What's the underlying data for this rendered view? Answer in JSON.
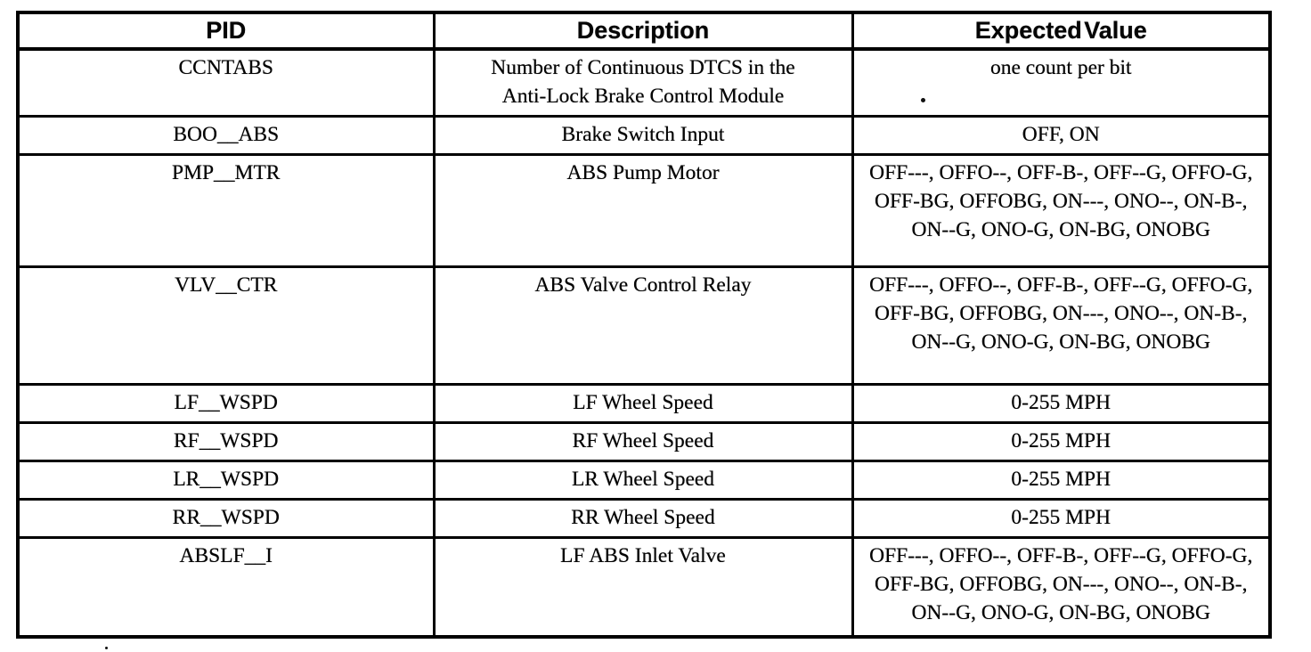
{
  "colors": {
    "ink": "#000000",
    "paper": "#ffffff"
  },
  "table": {
    "columns": [
      "PID",
      "Description",
      "Expected Value"
    ],
    "rows": [
      {
        "pid": "CCNTABS",
        "description": "Number of Continuous DTCS in the Anti-Lock Brake Control Module",
        "expected": "one count per bit"
      },
      {
        "pid": "BOO__ABS",
        "description": "Brake Switch Input",
        "expected": "OFF, ON"
      },
      {
        "pid": "PMP__MTR",
        "description": "ABS Pump Motor",
        "expected": "OFF---, OFFO--, OFF-B-, OFF--G, OFFO-G, OFF-BG, OFFOBG, ON---, ONO--, ON-B-, ON--G, ONO-G, ON-BG, ONOBG"
      },
      {
        "pid": "VLV__CTR",
        "description": "ABS Valve Control Relay",
        "expected": "OFF---, OFFO--, OFF-B-, OFF--G, OFFO-G, OFF-BG, OFFOBG, ON---, ONO--, ON-B-, ON--G, ONO-G, ON-BG, ONOBG"
      },
      {
        "pid": "LF__WSPD",
        "description": "LF Wheel Speed",
        "expected": "0-255 MPH"
      },
      {
        "pid": "RF__WSPD",
        "description": "RF Wheel Speed",
        "expected": "0-255 MPH"
      },
      {
        "pid": "LR__WSPD",
        "description": "LR Wheel Speed",
        "expected": "0-255 MPH"
      },
      {
        "pid": "RR__WSPD",
        "description": "RR Wheel Speed",
        "expected": "0-255 MPH"
      },
      {
        "pid": "ABSLF__I",
        "description": "LF ABS Inlet Valve",
        "expected": "OFF---, OFFO--, OFF-B-, OFF--G, OFFO-G, OFF-BG, OFFOBG, ON---, ONO--, ON-B-, ON--G, ONO-G, ON-BG, ONOBG"
      }
    ]
  }
}
